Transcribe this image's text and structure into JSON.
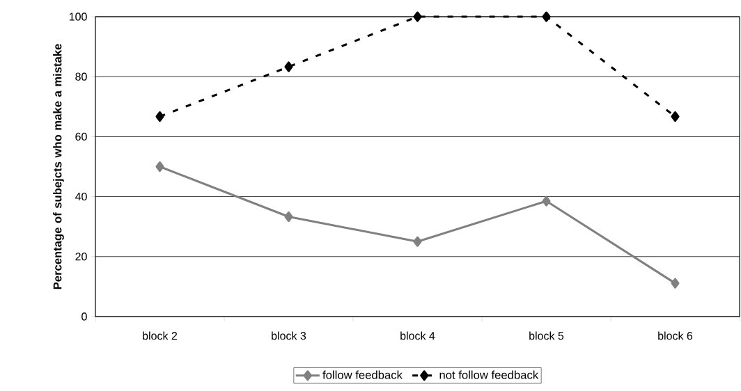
{
  "chart_data": {
    "type": "line",
    "ylabel": "Percentage of subejcts who make a mistake",
    "categories": [
      "block 2",
      "block 3",
      "block 4",
      "block 5",
      "block 6"
    ],
    "series": [
      {
        "name": "follow feedback",
        "color": "#808080",
        "line_style": "solid",
        "values": [
          50,
          33.3,
          25,
          38.5,
          11.1
        ]
      },
      {
        "name": "not follow feedback",
        "color": "#000000",
        "line_style": "dashed",
        "values": [
          66.7,
          83.3,
          100,
          100,
          66.7
        ]
      }
    ],
    "ylim": [
      0,
      100
    ],
    "yticks": [
      0,
      20,
      40,
      60,
      80,
      100
    ],
    "grid": "y",
    "legend": "bottom",
    "marker": "diamond"
  }
}
